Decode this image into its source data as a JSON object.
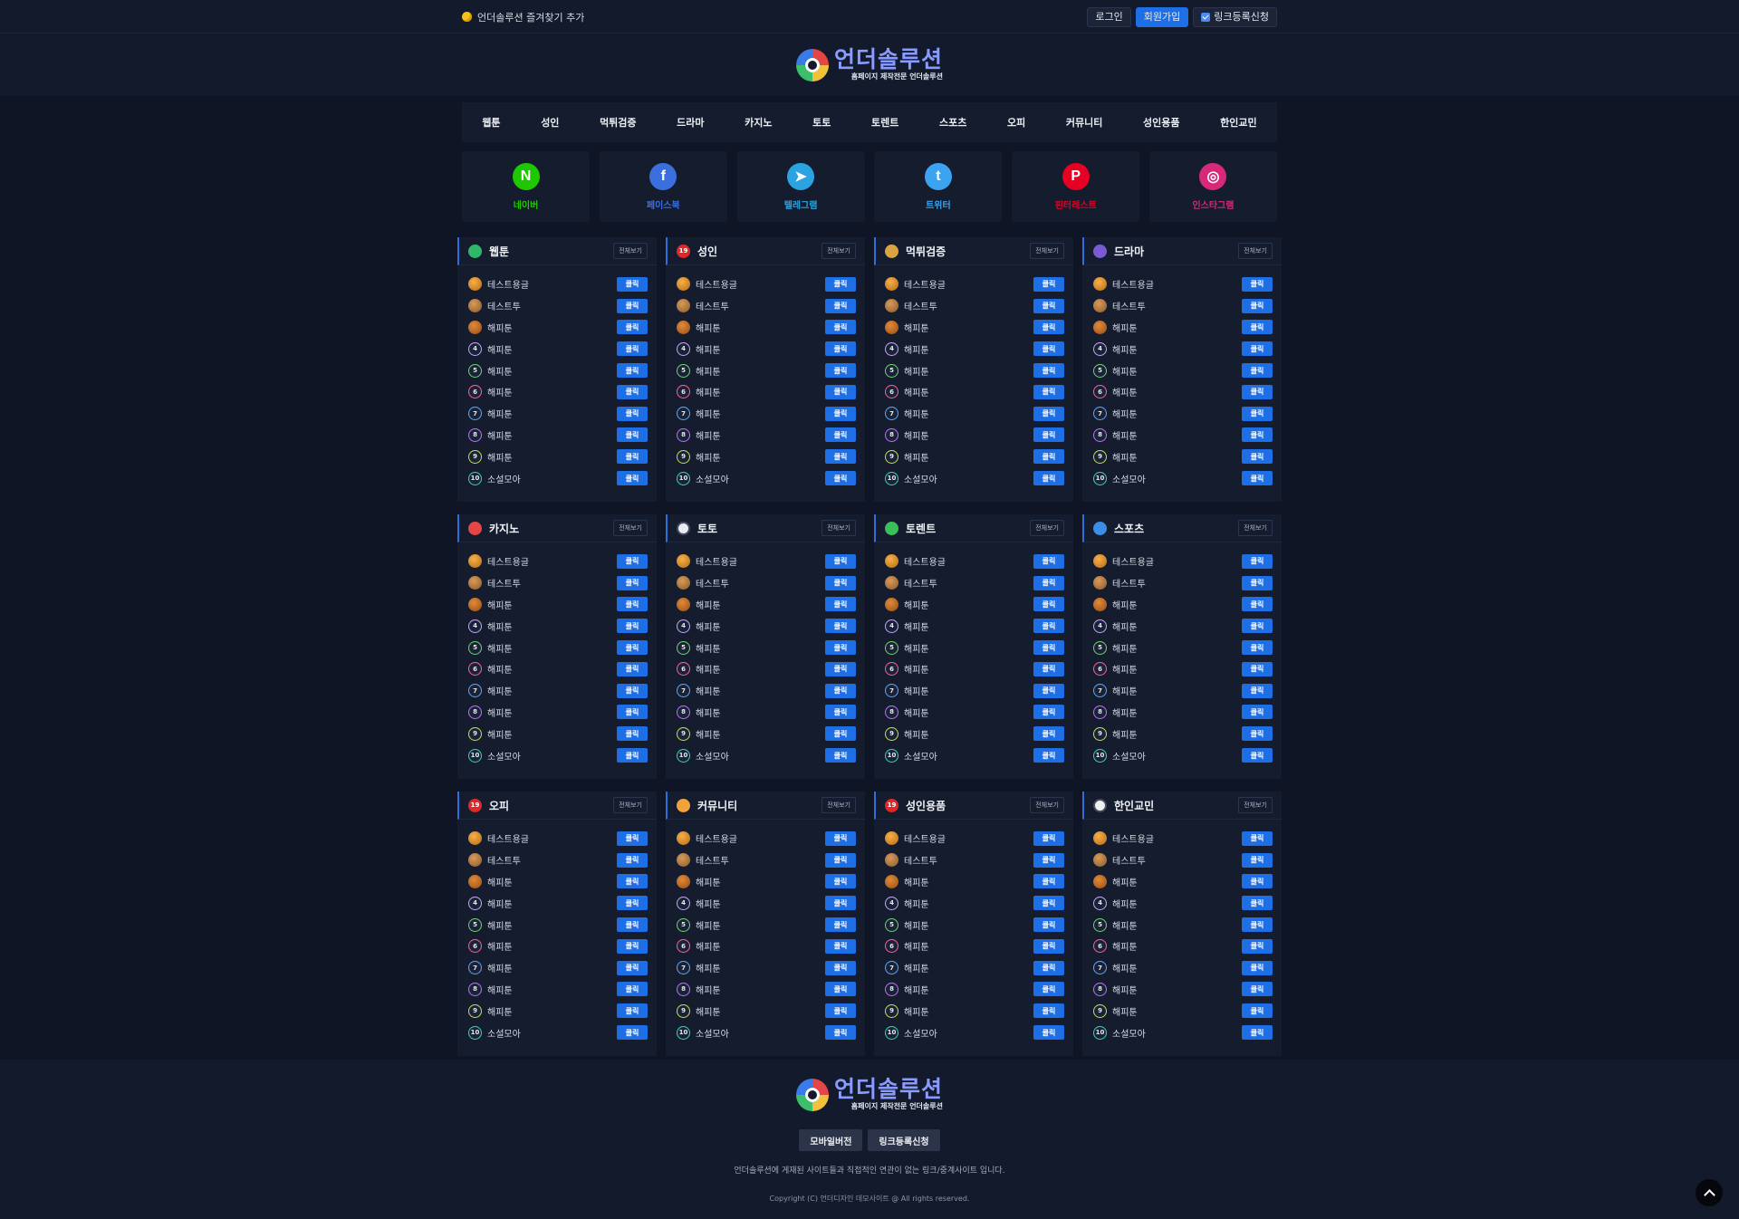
{
  "topbar": {
    "favorite_label": "언더솔루션 즐겨찾기 추가",
    "login": "로그인",
    "signup": "회원가입",
    "link_request": "링크등록신청"
  },
  "logo": {
    "title": "언더솔루션",
    "subtitle": "홈페이지 제작전문 언더솔루션"
  },
  "nav": [
    "웹툰",
    "성인",
    "먹튀검증",
    "드라마",
    "카지노",
    "토토",
    "토렌트",
    "스포츠",
    "오피",
    "커뮤니티",
    "성인용품",
    "한인교민"
  ],
  "social": [
    {
      "label": "네이버",
      "icon": "naver-icon",
      "color": "#1ec800",
      "glyph": "N"
    },
    {
      "label": "페이스북",
      "icon": "facebook-icon",
      "color": "#3b6fe0",
      "glyph": "f"
    },
    {
      "label": "텔레그램",
      "icon": "telegram-icon",
      "color": "#2aa3e0",
      "glyph": "➤"
    },
    {
      "label": "트위터",
      "icon": "twitter-icon",
      "color": "#3ba3f0",
      "glyph": "t"
    },
    {
      "label": "핀터레스트",
      "icon": "pinterest-icon",
      "color": "#e60023",
      "glyph": "P"
    },
    {
      "label": "인스타그램",
      "icon": "instagram-icon",
      "color": "#d6297a",
      "glyph": "◎"
    }
  ],
  "panel_more": "전체보기",
  "panel_go": "클릭",
  "panels": [
    {
      "title": "웹툰",
      "icon": "webtoon-icon",
      "color": "#2fb86a",
      "glyph": ""
    },
    {
      "title": "성인",
      "icon": "adult-19-icon",
      "color": "#e02828",
      "glyph": "19"
    },
    {
      "title": "먹튀검증",
      "icon": "shield-icon",
      "color": "#d9a441",
      "glyph": ""
    },
    {
      "title": "드라마",
      "icon": "drama-icon",
      "color": "#7a5ad6",
      "glyph": ""
    },
    {
      "title": "카지노",
      "icon": "casino-chip-icon",
      "color": "#e54545",
      "glyph": ""
    },
    {
      "title": "토토",
      "icon": "soccer-ball-icon",
      "color": "#e8ecf2",
      "glyph": ""
    },
    {
      "title": "토렌트",
      "icon": "torrent-icon",
      "color": "#3bbf5a",
      "glyph": ""
    },
    {
      "title": "스포츠",
      "icon": "sports-icon",
      "color": "#3a8ee8",
      "glyph": ""
    },
    {
      "title": "오피",
      "icon": "adult-19-icon",
      "color": "#e02828",
      "glyph": "19"
    },
    {
      "title": "커뮤니티",
      "icon": "community-icon",
      "color": "#f2a23a",
      "glyph": ""
    },
    {
      "title": "성인용품",
      "icon": "adult-19-icon",
      "color": "#e02828",
      "glyph": "19"
    },
    {
      "title": "한인교민",
      "icon": "korea-flag-icon",
      "color": "#f0f0f0",
      "glyph": ""
    }
  ],
  "rows": [
    {
      "label": "테스트용글",
      "rank": "1"
    },
    {
      "label": "테스트투",
      "rank": "2"
    },
    {
      "label": "해피툰",
      "rank": "3"
    },
    {
      "label": "해피툰",
      "rank": "4"
    },
    {
      "label": "해피툰",
      "rank": "5"
    },
    {
      "label": "해피툰",
      "rank": "6"
    },
    {
      "label": "해피툰",
      "rank": "7"
    },
    {
      "label": "해피툰",
      "rank": "8"
    },
    {
      "label": "해피툰",
      "rank": "9"
    },
    {
      "label": "소설모아",
      "rank": "10"
    }
  ],
  "rank_colors": [
    "",
    "",
    "",
    "#c8a7ff",
    "#6fd66f",
    "#ff5fa0",
    "#5fa8ff",
    "#c070ff",
    "#c8e05a",
    "#3cd6b0"
  ],
  "footer": {
    "mobile": "모바일버전",
    "link_request": "링크등록신청",
    "notice": "언더솔루션에 게재된 사이트들과 직접적인 연관이 없는 링크/중계사이트 입니다.",
    "copyright": "Copyright (C) 언더디자인 데모사이트 @ All rights reserved."
  }
}
